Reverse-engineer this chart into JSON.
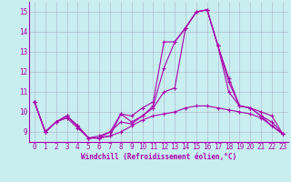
{
  "xlabel": "Windchill (Refroidissement éolien,°C)",
  "background_color": "#c8eef0",
  "line_color": "#aa00aa",
  "grid_color": "#b0b0cc",
  "xlim": [
    -0.5,
    23.5
  ],
  "ylim": [
    8.5,
    15.5
  ],
  "yticks": [
    9,
    10,
    11,
    12,
    13,
    14,
    15
  ],
  "xticks": [
    0,
    1,
    2,
    3,
    4,
    5,
    6,
    7,
    8,
    9,
    10,
    11,
    12,
    13,
    14,
    15,
    16,
    17,
    18,
    19,
    20,
    21,
    22,
    23
  ],
  "series": [
    [
      10.5,
      9.0,
      9.5,
      9.8,
      9.3,
      8.7,
      8.7,
      8.8,
      9.9,
      9.8,
      10.2,
      10.5,
      13.5,
      13.5,
      14.2,
      15.0,
      15.1,
      13.3,
      11.5,
      10.3,
      10.2,
      10.0,
      9.8,
      8.9
    ],
    [
      10.5,
      9.0,
      9.5,
      9.8,
      9.3,
      8.7,
      8.7,
      9.0,
      9.9,
      9.5,
      9.8,
      10.3,
      12.2,
      13.5,
      14.2,
      15.0,
      15.1,
      13.3,
      11.7,
      10.3,
      10.2,
      9.8,
      9.5,
      8.9
    ],
    [
      10.5,
      9.0,
      9.5,
      9.7,
      9.2,
      8.7,
      8.8,
      9.0,
      9.5,
      9.4,
      9.8,
      10.2,
      11.0,
      11.2,
      14.2,
      15.0,
      15.1,
      13.3,
      11.0,
      10.3,
      10.2,
      9.8,
      9.3,
      8.9
    ],
    [
      10.5,
      9.0,
      9.5,
      9.8,
      9.3,
      8.7,
      8.7,
      8.8,
      9.0,
      9.3,
      9.6,
      9.8,
      9.9,
      10.0,
      10.2,
      10.3,
      10.3,
      10.2,
      10.1,
      10.0,
      9.9,
      9.7,
      9.3,
      8.9
    ]
  ],
  "tick_fontsize": 5.5,
  "xlabel_fontsize": 5.5
}
